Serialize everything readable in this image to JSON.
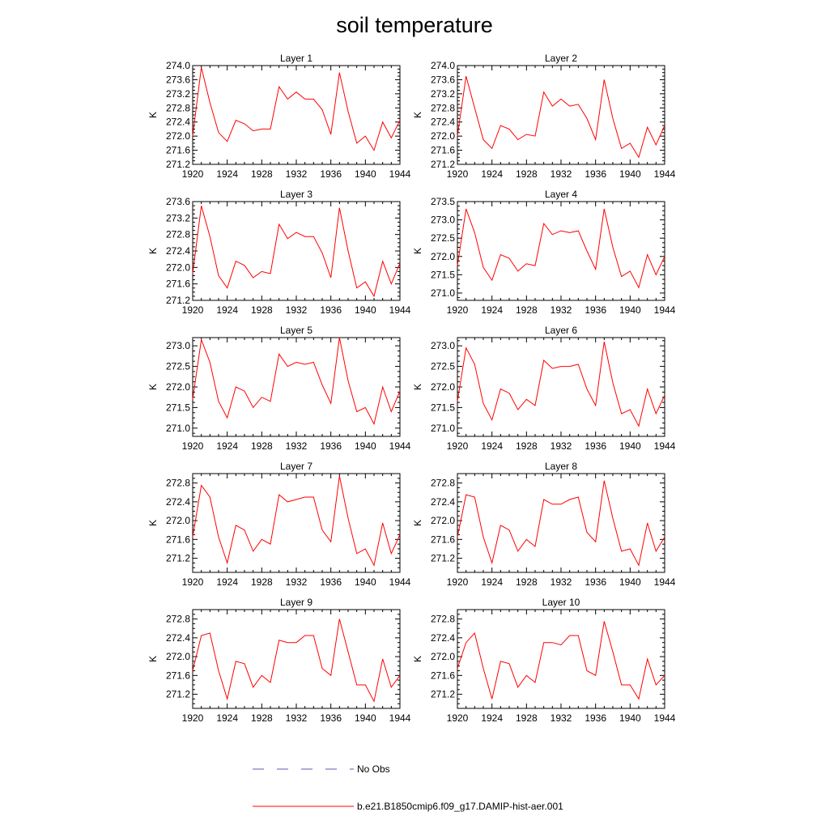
{
  "title": "soil temperature",
  "colors": {
    "model": "#ff0000",
    "obs": "#5a5ab0"
  },
  "legend": {
    "obs_label": "No Obs",
    "model_label": "b.e21.B1850cmip6.f09_g17.DAMIP-hist-aer.001"
  },
  "chart_data": {
    "type": "line",
    "x": [
      1920,
      1921,
      1922,
      1923,
      1924,
      1925,
      1926,
      1927,
      1928,
      1929,
      1930,
      1931,
      1932,
      1933,
      1934,
      1935,
      1936,
      1937,
      1938,
      1939,
      1940,
      1941,
      1942,
      1943,
      1944
    ],
    "xticks": [
      1920,
      1924,
      1928,
      1932,
      1936,
      1940,
      1944
    ],
    "xlim": [
      1920,
      1944
    ],
    "ylabel": "K",
    "panels": [
      {
        "title": "Layer 1",
        "ylim": [
          271.2,
          274.0
        ],
        "yticks": [
          "271.2",
          "271.6",
          "272.0",
          "272.4",
          "272.8",
          "273.2",
          "273.6",
          "274.0"
        ],
        "ytick_values": [
          271.2,
          271.6,
          272.0,
          272.4,
          272.8,
          273.2,
          273.6,
          274.0
        ],
        "values": [
          272.0,
          273.95,
          272.95,
          272.1,
          271.85,
          272.45,
          272.35,
          272.15,
          272.2,
          272.2,
          273.4,
          273.05,
          273.25,
          273.05,
          273.05,
          272.75,
          272.05,
          273.8,
          272.7,
          271.8,
          272.0,
          271.6,
          272.4,
          271.95,
          272.45
        ]
      },
      {
        "title": "Layer 2",
        "ylim": [
          271.2,
          274.0
        ],
        "yticks": [
          "271.2",
          "271.6",
          "272.0",
          "272.4",
          "272.8",
          "273.2",
          "273.6",
          "274.0"
        ],
        "ytick_values": [
          271.2,
          271.6,
          272.0,
          272.4,
          272.8,
          273.2,
          273.6,
          274.0
        ],
        "values": [
          272.0,
          273.7,
          272.8,
          271.9,
          271.65,
          272.3,
          272.2,
          271.9,
          272.05,
          272.0,
          273.25,
          272.85,
          273.05,
          272.85,
          272.9,
          272.5,
          271.9,
          273.6,
          272.5,
          271.65,
          271.8,
          271.4,
          272.25,
          271.75,
          272.3
        ]
      },
      {
        "title": "Layer 3",
        "ylim": [
          271.2,
          273.6
        ],
        "yticks": [
          "271.2",
          "271.6",
          "272.0",
          "272.4",
          "272.8",
          "273.2",
          "273.6"
        ],
        "ytick_values": [
          271.2,
          271.6,
          272.0,
          272.4,
          272.8,
          273.2,
          273.6
        ],
        "values": [
          271.85,
          273.5,
          272.75,
          271.8,
          271.5,
          272.15,
          272.05,
          271.75,
          271.9,
          271.85,
          273.05,
          272.7,
          272.85,
          272.75,
          272.75,
          272.35,
          271.75,
          273.45,
          272.4,
          271.5,
          271.65,
          271.3,
          272.15,
          271.6,
          272.1
        ]
      },
      {
        "title": "Layer 4",
        "ylim": [
          270.8,
          273.5
        ],
        "yticks": [
          "271.0",
          "271.5",
          "272.0",
          "272.5",
          "273.0",
          "273.5"
        ],
        "ytick_values": [
          271.0,
          271.5,
          272.0,
          272.5,
          273.0,
          273.5
        ],
        "values": [
          271.75,
          273.3,
          272.65,
          271.7,
          271.35,
          272.05,
          271.95,
          271.6,
          271.8,
          271.75,
          272.9,
          272.6,
          272.7,
          272.65,
          272.7,
          272.15,
          271.65,
          273.3,
          272.25,
          271.45,
          271.6,
          271.15,
          272.05,
          271.5,
          272.0
        ]
      },
      {
        "title": "Layer 5",
        "ylim": [
          270.8,
          273.2
        ],
        "yticks": [
          "271.0",
          "271.5",
          "272.0",
          "272.5",
          "273.0"
        ],
        "ytick_values": [
          271.0,
          271.5,
          272.0,
          272.5,
          273.0
        ],
        "values": [
          271.7,
          273.15,
          272.6,
          271.65,
          271.25,
          272.0,
          271.9,
          271.5,
          271.75,
          271.65,
          272.8,
          272.5,
          272.6,
          272.55,
          272.6,
          272.05,
          271.6,
          273.2,
          272.15,
          271.4,
          271.5,
          271.1,
          272.0,
          271.4,
          271.9
        ]
      },
      {
        "title": "Layer 6",
        "ylim": [
          270.8,
          273.2
        ],
        "yticks": [
          "271.0",
          "271.5",
          "272.0",
          "272.5",
          "273.0"
        ],
        "ytick_values": [
          271.0,
          271.5,
          272.0,
          272.5,
          273.0
        ],
        "values": [
          271.65,
          272.95,
          272.55,
          271.6,
          271.2,
          271.95,
          271.85,
          271.45,
          271.7,
          271.55,
          272.65,
          272.45,
          272.5,
          272.5,
          272.55,
          271.95,
          271.55,
          273.1,
          272.1,
          271.35,
          271.45,
          271.05,
          271.95,
          271.35,
          271.8
        ]
      },
      {
        "title": "Layer 7",
        "ylim": [
          270.9,
          273.0
        ],
        "yticks": [
          "271.2",
          "271.6",
          "272.0",
          "272.4",
          "272.8"
        ],
        "ytick_values": [
          271.2,
          271.6,
          272.0,
          272.4,
          272.8
        ],
        "values": [
          271.65,
          272.75,
          272.5,
          271.65,
          271.1,
          271.9,
          271.8,
          271.35,
          271.6,
          271.5,
          272.55,
          272.4,
          272.45,
          272.5,
          272.5,
          271.8,
          271.55,
          272.95,
          272.05,
          271.3,
          271.4,
          271.05,
          271.95,
          271.3,
          271.7
        ]
      },
      {
        "title": "Layer 8",
        "ylim": [
          270.9,
          273.0
        ],
        "yticks": [
          "271.2",
          "271.6",
          "272.0",
          "272.4",
          "272.8"
        ],
        "ytick_values": [
          271.2,
          271.6,
          272.0,
          272.4,
          272.8
        ],
        "values": [
          271.65,
          272.55,
          272.5,
          271.65,
          271.1,
          271.9,
          271.8,
          271.35,
          271.6,
          271.45,
          272.45,
          272.35,
          272.35,
          272.45,
          272.5,
          271.75,
          271.55,
          272.85,
          272.05,
          271.35,
          271.4,
          271.05,
          271.95,
          271.35,
          271.65
        ]
      },
      {
        "title": "Layer 9",
        "ylim": [
          270.9,
          273.0
        ],
        "yticks": [
          "271.2",
          "271.6",
          "272.0",
          "272.4",
          "272.8"
        ],
        "ytick_values": [
          271.2,
          271.6,
          272.0,
          272.4,
          272.8
        ],
        "values": [
          271.7,
          272.45,
          272.5,
          271.7,
          271.1,
          271.9,
          271.85,
          271.35,
          271.6,
          271.45,
          272.35,
          272.3,
          272.3,
          272.45,
          272.45,
          271.75,
          271.6,
          272.8,
          272.1,
          271.4,
          271.4,
          271.05,
          271.95,
          271.35,
          271.6
        ]
      },
      {
        "title": "Layer 10",
        "ylim": [
          270.9,
          273.0
        ],
        "yticks": [
          "271.2",
          "271.6",
          "272.0",
          "272.4",
          "272.8"
        ],
        "ytick_values": [
          271.2,
          271.6,
          272.0,
          272.4,
          272.8
        ],
        "values": [
          271.75,
          272.3,
          272.5,
          271.75,
          271.1,
          271.9,
          271.85,
          271.35,
          271.6,
          271.45,
          272.3,
          272.3,
          272.25,
          272.45,
          272.45,
          271.7,
          271.6,
          272.75,
          272.1,
          271.4,
          271.4,
          271.1,
          271.95,
          271.4,
          271.6
        ]
      }
    ]
  }
}
